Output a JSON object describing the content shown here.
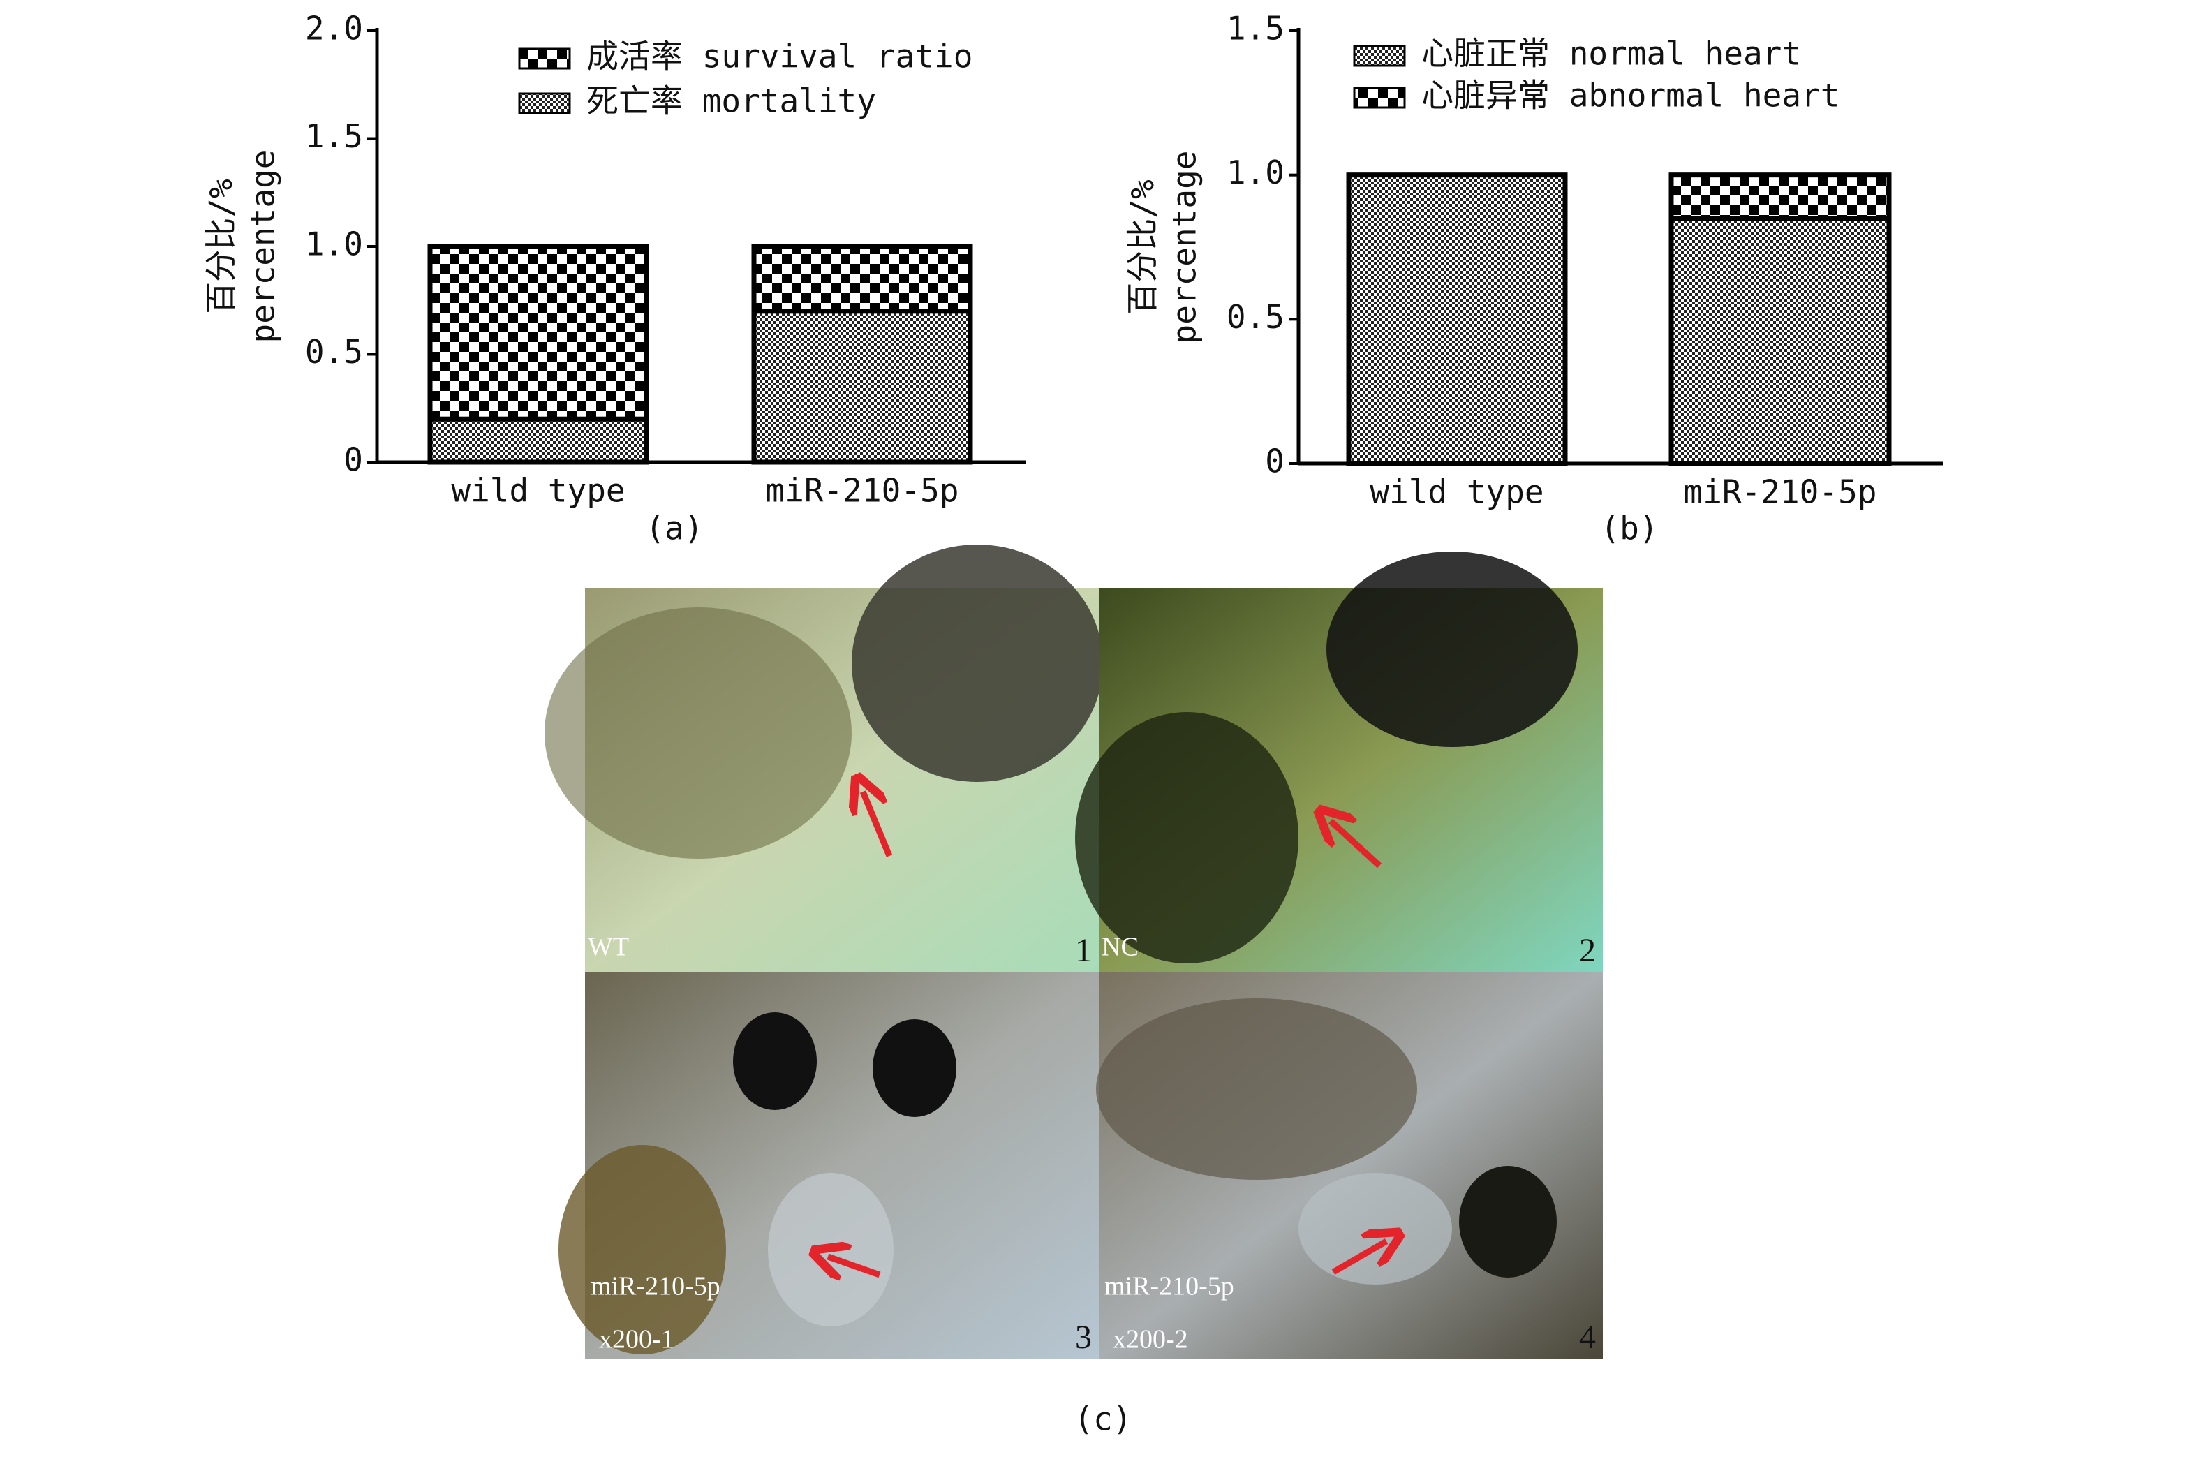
{
  "chart_data": [
    {
      "type": "bar",
      "stacked": true,
      "legend_reversed": true,
      "y_label": [
        "百分比/%",
        "percentage"
      ],
      "caption": "(a)",
      "categories": [
        "wild type",
        "miR-210-5p"
      ],
      "series": [
        {
          "name": "死亡率 mortality",
          "pattern": "fine",
          "values": [
            0.2,
            0.7
          ]
        },
        {
          "name": "成活率 survival ratio",
          "pattern": "coarse",
          "values": [
            0.8,
            0.3
          ]
        }
      ],
      "ylim": [
        0,
        2
      ],
      "yticks": [
        0,
        0.5,
        {
          "value": 1,
          "label": "1.0"
        },
        1.5,
        {
          "value": 2,
          "label": "2.0"
        }
      ]
    },
    {
      "type": "bar",
      "stacked": true,
      "legend_reversed": false,
      "y_label": [
        "百分比/%",
        "percentage"
      ],
      "caption": "(b)",
      "categories": [
        "wild type",
        "miR-210-5p"
      ],
      "series": [
        {
          "name": "心脏正常 normal heart",
          "pattern": "fine",
          "values": [
            1,
            0.85
          ]
        },
        {
          "name": "心脏异常 abnormal heart",
          "pattern": "coarse",
          "values": [
            0,
            0.15
          ]
        }
      ],
      "ylim": [
        0,
        1.5
      ],
      "yticks": [
        0,
        0.5,
        {
          "value": 1,
          "label": "1.0"
        },
        1.5
      ]
    }
  ],
  "photos": {
    "caption": "(c)",
    "panels": [
      {
        "label": "WT",
        "number": "1"
      },
      {
        "label": "NC",
        "number": "2"
      },
      {
        "label": "miR-210-5p",
        "sublabel": "x200-1",
        "number": "3"
      },
      {
        "label": "miR-210-5p",
        "sublabel": "x200-2",
        "number": "4"
      }
    ]
  }
}
